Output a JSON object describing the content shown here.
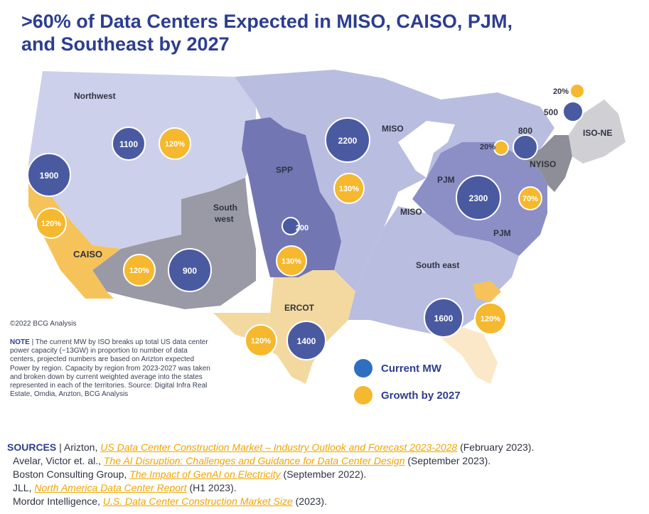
{
  "title": ">60% of Data Centers Expected in MISO, CAISO, PJM, and Southeast by 2027",
  "colors": {
    "title": "#2c3e8f",
    "current_mw": "#2f4a9a",
    "growth": "#f5b82e",
    "miso_region": "#b9bde0",
    "spp_region": "#7277b3",
    "pjm_region": "#8b8fc6",
    "northwest_region": "#cdd0ea",
    "southwest_region": "#9a9aa6",
    "caiso_region": "#f6c35a",
    "ercot_region": "#f3d9a0",
    "nyiso_region": "#8e8e98",
    "isone_region": "#cfcfd4"
  },
  "regions": {
    "northwest": "Northwest",
    "southwest": "South\nwest",
    "caiso": "CAISO",
    "spp": "SPP",
    "miso_north": "MISO",
    "miso_central": "MISO",
    "pjm_north": "PJM",
    "pjm_east": "PJM",
    "ercot": "ERCOT",
    "southeast": "South east",
    "nyiso": "NYISO",
    "isone": "ISO-NE"
  },
  "markers": {
    "current": [
      {
        "id": "northwest",
        "label": "1100",
        "mw": 1100
      },
      {
        "id": "caiso",
        "label": "1900",
        "mw": 1900
      },
      {
        "id": "southwest",
        "label": "900",
        "mw": 900
      },
      {
        "id": "spp",
        "label": "200",
        "mw": 200
      },
      {
        "id": "miso",
        "label": "2200",
        "mw": 2200
      },
      {
        "id": "ercot",
        "label": "1400",
        "mw": 1400
      },
      {
        "id": "pjm",
        "label": "2300",
        "mw": 2300
      },
      {
        "id": "southeast",
        "label": "1600",
        "mw": 1600
      },
      {
        "id": "nyiso",
        "label": "800",
        "mw": 800
      },
      {
        "id": "isone",
        "label": "500",
        "mw": 500
      }
    ],
    "growth": [
      {
        "id": "northwest",
        "label": "120%"
      },
      {
        "id": "caiso",
        "label": "120%"
      },
      {
        "id": "southwest",
        "label": "120%"
      },
      {
        "id": "spp",
        "label": "130%"
      },
      {
        "id": "miso",
        "label": "130%"
      },
      {
        "id": "ercot",
        "label": "120%"
      },
      {
        "id": "pjm",
        "label": "70%"
      },
      {
        "id": "southeast",
        "label": "120%"
      },
      {
        "id": "nyiso",
        "label": "20%"
      },
      {
        "id": "isone",
        "label": "20%"
      }
    ]
  },
  "legend": {
    "current": "Current MW",
    "growth": "Growth by 2027"
  },
  "copyright": "©2022 BCG Analysis",
  "note": {
    "label": "NOTE",
    "text": "The current MW by ISO breaks up total US data center power capacity (~13GW) in proportion to number of data centers, projected numbers are based on Arizton expected Power by region. Capacity by region from 2023-2027 was taken and broken down by current weighted average into the states represented in each of the territories. Source: Digital Infra Real Estate, Omdia, Anzton, BCG Analysis"
  },
  "sources": {
    "label": "SOURCES",
    "items": [
      {
        "author": "Arizton,",
        "link": "US Data Center Construction Market – Industry Outlook and Forecast 2023-2028",
        "date": "(February 2023)."
      },
      {
        "author": "Avelar, Victor et. al.,",
        "link": "The AI Disruption: Challenges and Guidance for Data Center Design",
        "date": "(September 2023)."
      },
      {
        "author": "Boston Consulting Group,",
        "link": "The Impact of GenAI on Electricity",
        "date": "(September 2022)."
      },
      {
        "author": "JLL,",
        "link": "North America Data Center Report",
        "date": "(H1 2023)."
      },
      {
        "author": "Mordor Intelligence,",
        "link": "U.S. Data Center Construction Market Size",
        "date": "(2023)."
      }
    ]
  }
}
